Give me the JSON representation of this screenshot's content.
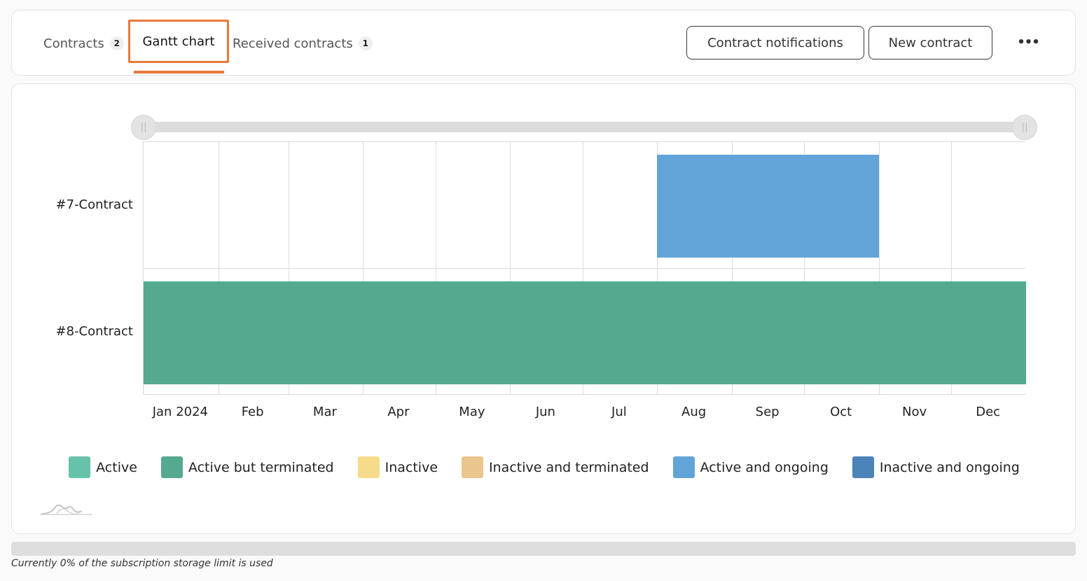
{
  "tabs": [
    {
      "label": "Contracts",
      "badge": "2"
    },
    {
      "label": "Gantt chart"
    },
    {
      "label": "Received contracts",
      "badge": "1"
    }
  ],
  "actions": {
    "notifications_label": "Contract notifications",
    "new_label": "New contract",
    "more_label": "•••"
  },
  "chart_data": {
    "type": "gantt",
    "tasks": [
      {
        "name": "#7-Contract",
        "start": "2024-08-01",
        "end": "2024-10-31",
        "status": "Active and ongoing",
        "color": "#62a4d8"
      },
      {
        "name": "#8-Contract",
        "start": "2024-01-01",
        "end": "2024-12-31",
        "status": "Active but terminated",
        "color": "#55a991"
      }
    ],
    "x_ticks": [
      "Jan 2024",
      "Feb",
      "Mar",
      "Apr",
      "May",
      "Jun",
      "Jul",
      "Aug",
      "Sep",
      "Oct",
      "Nov",
      "Dec"
    ],
    "x_range": [
      "2024-01-01",
      "2024-12-31"
    ],
    "grid": true,
    "legend": [
      {
        "label": "Active",
        "color": "#66c2a8"
      },
      {
        "label": "Active but terminated",
        "color": "#55a991"
      },
      {
        "label": "Inactive",
        "color": "#f6dc8a"
      },
      {
        "label": "Inactive and terminated",
        "color": "#ecc58c"
      },
      {
        "label": "Active and ongoing",
        "color": "#62a4d8"
      },
      {
        "label": "Inactive and ongoing",
        "color": "#4a84b9"
      }
    ],
    "legend_position": "bottom"
  },
  "storage": {
    "text": "Currently 0% of the subscription storage limit is used",
    "used_fraction": 0
  }
}
